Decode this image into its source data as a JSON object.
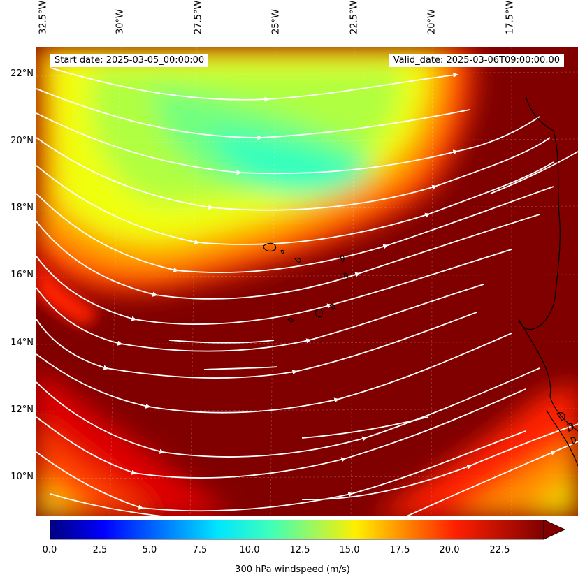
{
  "header": {
    "start_date": "Start date: 2025-03-05_00:00:00",
    "valid_date": "Valid_date: 2025-03-06T09:00:00.00"
  },
  "axes": {
    "lon_ticks": [
      "32.5°W",
      "30°W",
      "27.5°W",
      "25°W",
      "22.5°W",
      "20°W",
      "17.5°W"
    ],
    "lat_ticks": [
      "22°N",
      "20°N",
      "18°N",
      "16°N",
      "14°N",
      "12°N",
      "10°N"
    ]
  },
  "colorbar": {
    "label": "300 hPa windspeed (m/s)",
    "ticks": [
      "0.0",
      "2.5",
      "5.0",
      "7.5",
      "10.0",
      "12.5",
      "15.0",
      "17.5",
      "20.0",
      "22.5"
    ],
    "min": 0,
    "max": 25,
    "extend": "max",
    "colormap": "jet"
  },
  "map": {
    "variable": "300 hPa windspeed",
    "units": "m/s",
    "overlay": "streamlines",
    "dominant_colors": {
      "jet_core": "#7f0000",
      "high": "#ff2000",
      "mid": "#ffd700",
      "low": "#2fffc0"
    }
  }
}
